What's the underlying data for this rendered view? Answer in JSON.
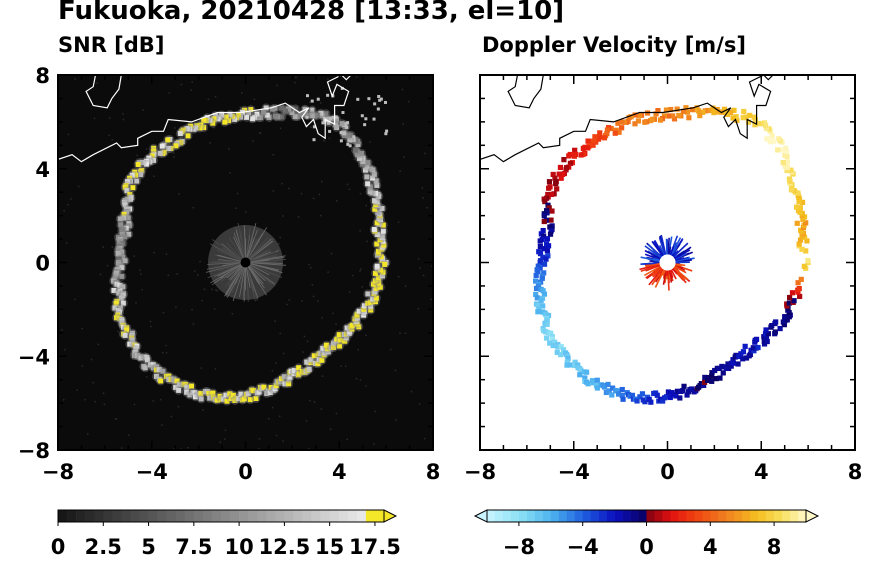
{
  "figure": {
    "title": "Fukuoka, 20210428 [13:33, el=10]"
  },
  "chart_data": [
    {
      "type": "heatmap",
      "panel": "left",
      "title": "SNR [dB]",
      "xlim": [
        -8,
        8
      ],
      "ylim": [
        -8,
        8
      ],
      "xticks": [
        "−8",
        "−4",
        "0",
        "4",
        "8"
      ],
      "yticks": [
        "8",
        "4",
        "0",
        "−4",
        "−8"
      ],
      "background_color": "#0b0b0b",
      "description_values": {
        "echo_ring_radius_approx": [
          4.7,
          6.2
        ],
        "center_clutter_radius": 1.6,
        "radar_site": [
          0,
          0
        ]
      },
      "ring_snr_samples": [
        {
          "angle": 0,
          "r": 5.8,
          "snr": 18
        },
        {
          "angle": 15,
          "r": 5.9,
          "snr": 16
        },
        {
          "angle": 30,
          "r": 6.3,
          "snr": 14
        },
        {
          "angle": 45,
          "r": 6.9,
          "snr": 10
        },
        {
          "angle": 60,
          "r": 7.1,
          "snr": 12
        },
        {
          "angle": 75,
          "r": 6.6,
          "snr": 8
        },
        {
          "angle": 90,
          "r": 6.3,
          "snr": 17
        },
        {
          "angle": 105,
          "r": 6.2,
          "snr": 18
        },
        {
          "angle": 120,
          "r": 6.0,
          "snr": 18
        },
        {
          "angle": 135,
          "r": 6.1,
          "snr": 17
        },
        {
          "angle": 150,
          "r": 5.8,
          "snr": 16
        },
        {
          "angle": 165,
          "r": 5.3,
          "snr": 12
        },
        {
          "angle": 180,
          "r": 5.3,
          "snr": 10
        },
        {
          "angle": 195,
          "r": 5.6,
          "snr": 15
        },
        {
          "angle": 210,
          "r": 5.9,
          "snr": 17
        },
        {
          "angle": 225,
          "r": 6.0,
          "snr": 14
        },
        {
          "angle": 240,
          "r": 6.0,
          "snr": 16
        },
        {
          "angle": 255,
          "r": 5.9,
          "snr": 17
        },
        {
          "angle": 270,
          "r": 5.7,
          "snr": 18
        },
        {
          "angle": 285,
          "r": 5.4,
          "snr": 16
        },
        {
          "angle": 300,
          "r": 5.1,
          "snr": 17
        },
        {
          "angle": 315,
          "r": 5.1,
          "snr": 17
        },
        {
          "angle": 330,
          "r": 5.4,
          "snr": 18
        },
        {
          "angle": 345,
          "r": 5.6,
          "snr": 17
        }
      ],
      "colorbar": {
        "orientation": "horizontal",
        "extend": "max",
        "min": 0,
        "max": 18,
        "tick_values": [
          0,
          2.5,
          5,
          7.5,
          10,
          12.5,
          15,
          17.5
        ],
        "tick_labels": [
          "0",
          "2.5",
          "5",
          "7.5",
          "10",
          "12.5",
          "15",
          "17.5"
        ]
      }
    },
    {
      "type": "heatmap",
      "panel": "right",
      "title": "Doppler Velocity [m/s]",
      "xlim": [
        -8,
        8
      ],
      "ylim": [
        -8,
        8
      ],
      "xticks": [
        "−8",
        "−4",
        "0",
        "4",
        "8"
      ],
      "yticks": [
        "8",
        "4",
        "0",
        "−4",
        "−8"
      ],
      "background_color": "#ffffff",
      "ring_velocity_samples": [
        {
          "angle": 0,
          "r": 5.8,
          "v": 9
        },
        {
          "angle": 15,
          "r": 5.9,
          "v": 6
        },
        {
          "angle": 30,
          "r": 6.3,
          "v": 8
        },
        {
          "angle": 45,
          "r": 6.9,
          "v": 10
        },
        {
          "angle": 60,
          "r": 7.1,
          "v": 8
        },
        {
          "angle": 75,
          "r": 6.6,
          "v": 6
        },
        {
          "angle": 90,
          "r": 6.3,
          "v": 5
        },
        {
          "angle": 105,
          "r": 6.2,
          "v": 5
        },
        {
          "angle": 120,
          "r": 6.0,
          "v": 3
        },
        {
          "angle": 135,
          "r": 6.1,
          "v": 1
        },
        {
          "angle": 150,
          "r": 5.8,
          "v": 0.5
        },
        {
          "angle": 165,
          "r": 5.3,
          "v": -1
        },
        {
          "angle": 180,
          "r": 5.3,
          "v": -3
        },
        {
          "angle": 195,
          "r": 5.6,
          "v": -6
        },
        {
          "angle": 210,
          "r": 5.9,
          "v": -8
        },
        {
          "angle": 225,
          "r": 6.0,
          "v": -7
        },
        {
          "angle": 240,
          "r": 6.0,
          "v": -6
        },
        {
          "angle": 255,
          "r": 5.9,
          "v": -4
        },
        {
          "angle": 270,
          "r": 5.7,
          "v": -2
        },
        {
          "angle": 285,
          "r": 5.4,
          "v": -0.5
        },
        {
          "angle": 300,
          "r": 5.1,
          "v": -1
        },
        {
          "angle": 315,
          "r": 5.1,
          "v": -2
        },
        {
          "angle": 330,
          "r": 5.4,
          "v": -1
        },
        {
          "angle": 345,
          "r": 5.6,
          "v": 0.3
        }
      ],
      "center_velocity": {
        "north_half": -1,
        "south_half": 1
      },
      "colorbar": {
        "orientation": "horizontal",
        "extend": "both",
        "min": -10,
        "max": 10,
        "tick_values": [
          -8,
          -4,
          0,
          4,
          8
        ],
        "tick_labels": [
          "−8",
          "−4",
          "0",
          "4",
          "8"
        ]
      }
    }
  ]
}
